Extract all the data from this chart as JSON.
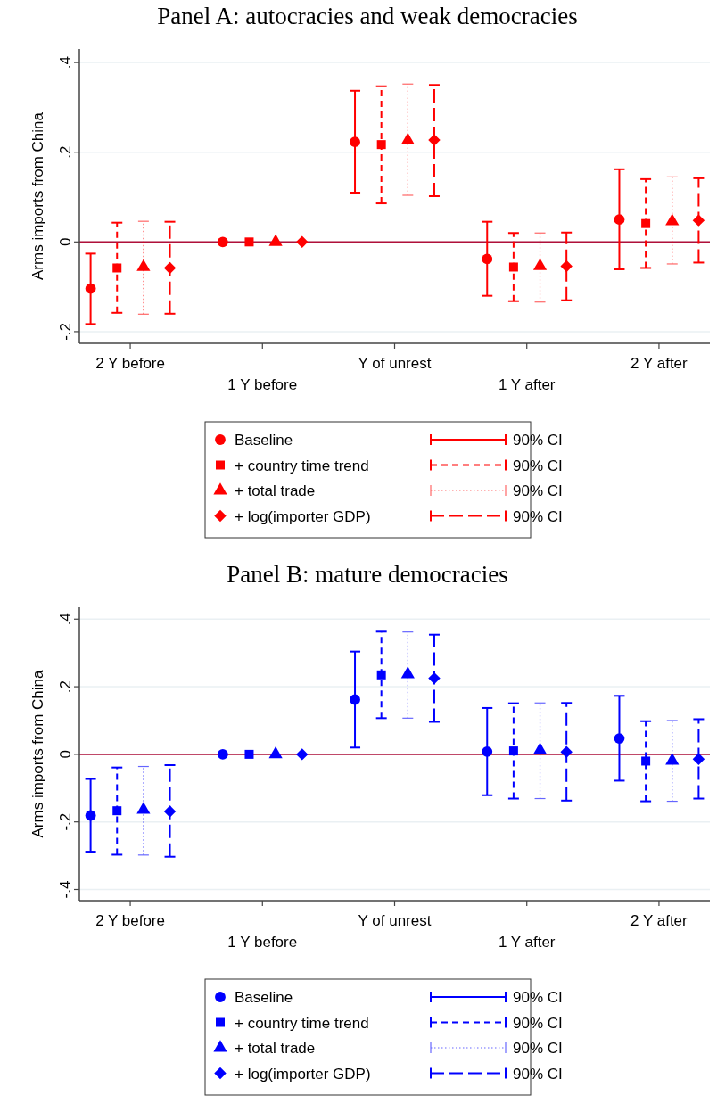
{
  "chart_data": [
    {
      "type": "scatter",
      "title": "Panel A: autocracies and weak democracies",
      "ylabel": "Arms imports from China",
      "categories": [
        "2 Y before",
        "1 Y before",
        "Y of unrest",
        "1 Y after",
        "2 Y after"
      ],
      "ylim": [
        -0.226,
        0.43
      ],
      "yticks": [
        {
          "value": 0.4,
          "label": ".4"
        },
        {
          "value": 0.2,
          "label": ".2"
        },
        0,
        {
          "value": -0.2,
          "label": "-.2"
        }
      ],
      "grid": "y",
      "legend": "bottom",
      "ref_lines": [
        {
          "axis": "y",
          "value": 0,
          "color": "#b0103a"
        }
      ],
      "annotations": [
        "90% CI",
        "90% CI",
        "90% CI",
        "90% CI"
      ],
      "series": [
        {
          "name": "Baseline",
          "color": "#ff0000",
          "marker": "circle",
          "line_style": "solid",
          "values": [
            -0.104,
            0,
            0.223,
            -0.038,
            0.05
          ],
          "errors": [
            [
              -0.183,
              -0.026
            ],
            null,
            [
              0.11,
              0.337
            ],
            [
              -0.12,
              0.045
            ],
            [
              -0.061,
              0.162
            ]
          ]
        },
        {
          "name": "+ country time trend",
          "color": "#ff0000",
          "marker": "square",
          "line_style": "dashed",
          "values": [
            -0.058,
            0,
            0.217,
            -0.056,
            0.041
          ],
          "errors": [
            [
              -0.158,
              0.043
            ],
            null,
            [
              0.086,
              0.347
            ],
            [
              -0.132,
              0.02
            ],
            [
              -0.058,
              0.14
            ]
          ]
        },
        {
          "name": "+ total trade",
          "color": "#ff0000",
          "marker": "triangle",
          "line_style": "dotted",
          "values": [
            -0.056,
            0,
            0.226,
            -0.054,
            0.046
          ],
          "errors": [
            [
              -0.161,
              0.046
            ],
            null,
            [
              0.104,
              0.352
            ],
            [
              -0.134,
              0.02
            ],
            [
              -0.049,
              0.145
            ]
          ]
        },
        {
          "name": "+ log(importer GDP)",
          "color": "#ff0000",
          "marker": "diamond",
          "line_style": "longdash",
          "values": [
            -0.058,
            0,
            0.227,
            -0.054,
            0.048
          ],
          "errors": [
            [
              -0.16,
              0.045
            ],
            null,
            [
              0.102,
              0.35
            ],
            [
              -0.13,
              0.021
            ],
            [
              -0.046,
              0.142
            ]
          ]
        }
      ]
    },
    {
      "type": "scatter",
      "title": "Panel B: mature democracies",
      "ylabel": "Arms imports from China",
      "categories": [
        "2 Y before",
        "1 Y before",
        "Y of unrest",
        "1 Y after",
        "2 Y after"
      ],
      "ylim": [
        -0.433,
        0.435
      ],
      "yticks": [
        {
          "value": 0.4,
          "label": ".4"
        },
        {
          "value": 0.2,
          "label": ".2"
        },
        0,
        {
          "value": -0.2,
          "label": "-.2"
        },
        {
          "value": -0.4,
          "label": "-.4"
        }
      ],
      "grid": "y",
      "legend": "bottom",
      "ref_lines": [
        {
          "axis": "y",
          "value": 0,
          "color": "#b0103a"
        }
      ],
      "annotations": [
        "90% CI",
        "90% CI",
        "90% CI",
        "90% CI"
      ],
      "series": [
        {
          "name": "Baseline",
          "color": "#0000ff",
          "marker": "circle",
          "line_style": "solid",
          "values": [
            -0.181,
            0,
            0.162,
            0.008,
            0.047
          ],
          "errors": [
            [
              -0.288,
              -0.073
            ],
            null,
            [
              0.02,
              0.304
            ],
            [
              -0.121,
              0.137
            ],
            [
              -0.078,
              0.173
            ]
          ]
        },
        {
          "name": "+ country time trend",
          "color": "#0000ff",
          "marker": "square",
          "line_style": "dashed",
          "values": [
            -0.167,
            0,
            0.235,
            0.01,
            -0.02
          ],
          "errors": [
            [
              -0.297,
              -0.039
            ],
            null,
            [
              0.107,
              0.363
            ],
            [
              -0.131,
              0.151
            ],
            [
              -0.139,
              0.098
            ]
          ]
        },
        {
          "name": "+ total trade",
          "color": "#0000ff",
          "marker": "triangle",
          "line_style": "dotted",
          "values": [
            -0.164,
            0,
            0.237,
            0.012,
            -0.019
          ],
          "errors": [
            [
              -0.298,
              -0.036
            ],
            null,
            [
              0.107,
              0.362
            ],
            [
              -0.131,
              0.152
            ],
            [
              -0.139,
              0.1
            ]
          ]
        },
        {
          "name": "+ log(importer GDP)",
          "color": "#0000ff",
          "marker": "diamond",
          "line_style": "longdash",
          "values": [
            -0.169,
            0,
            0.225,
            0.007,
            -0.014
          ],
          "errors": [
            [
              -0.303,
              -0.032
            ],
            null,
            [
              0.096,
              0.354
            ],
            [
              -0.137,
              0.152
            ],
            [
              -0.131,
              0.104
            ]
          ]
        }
      ]
    }
  ]
}
